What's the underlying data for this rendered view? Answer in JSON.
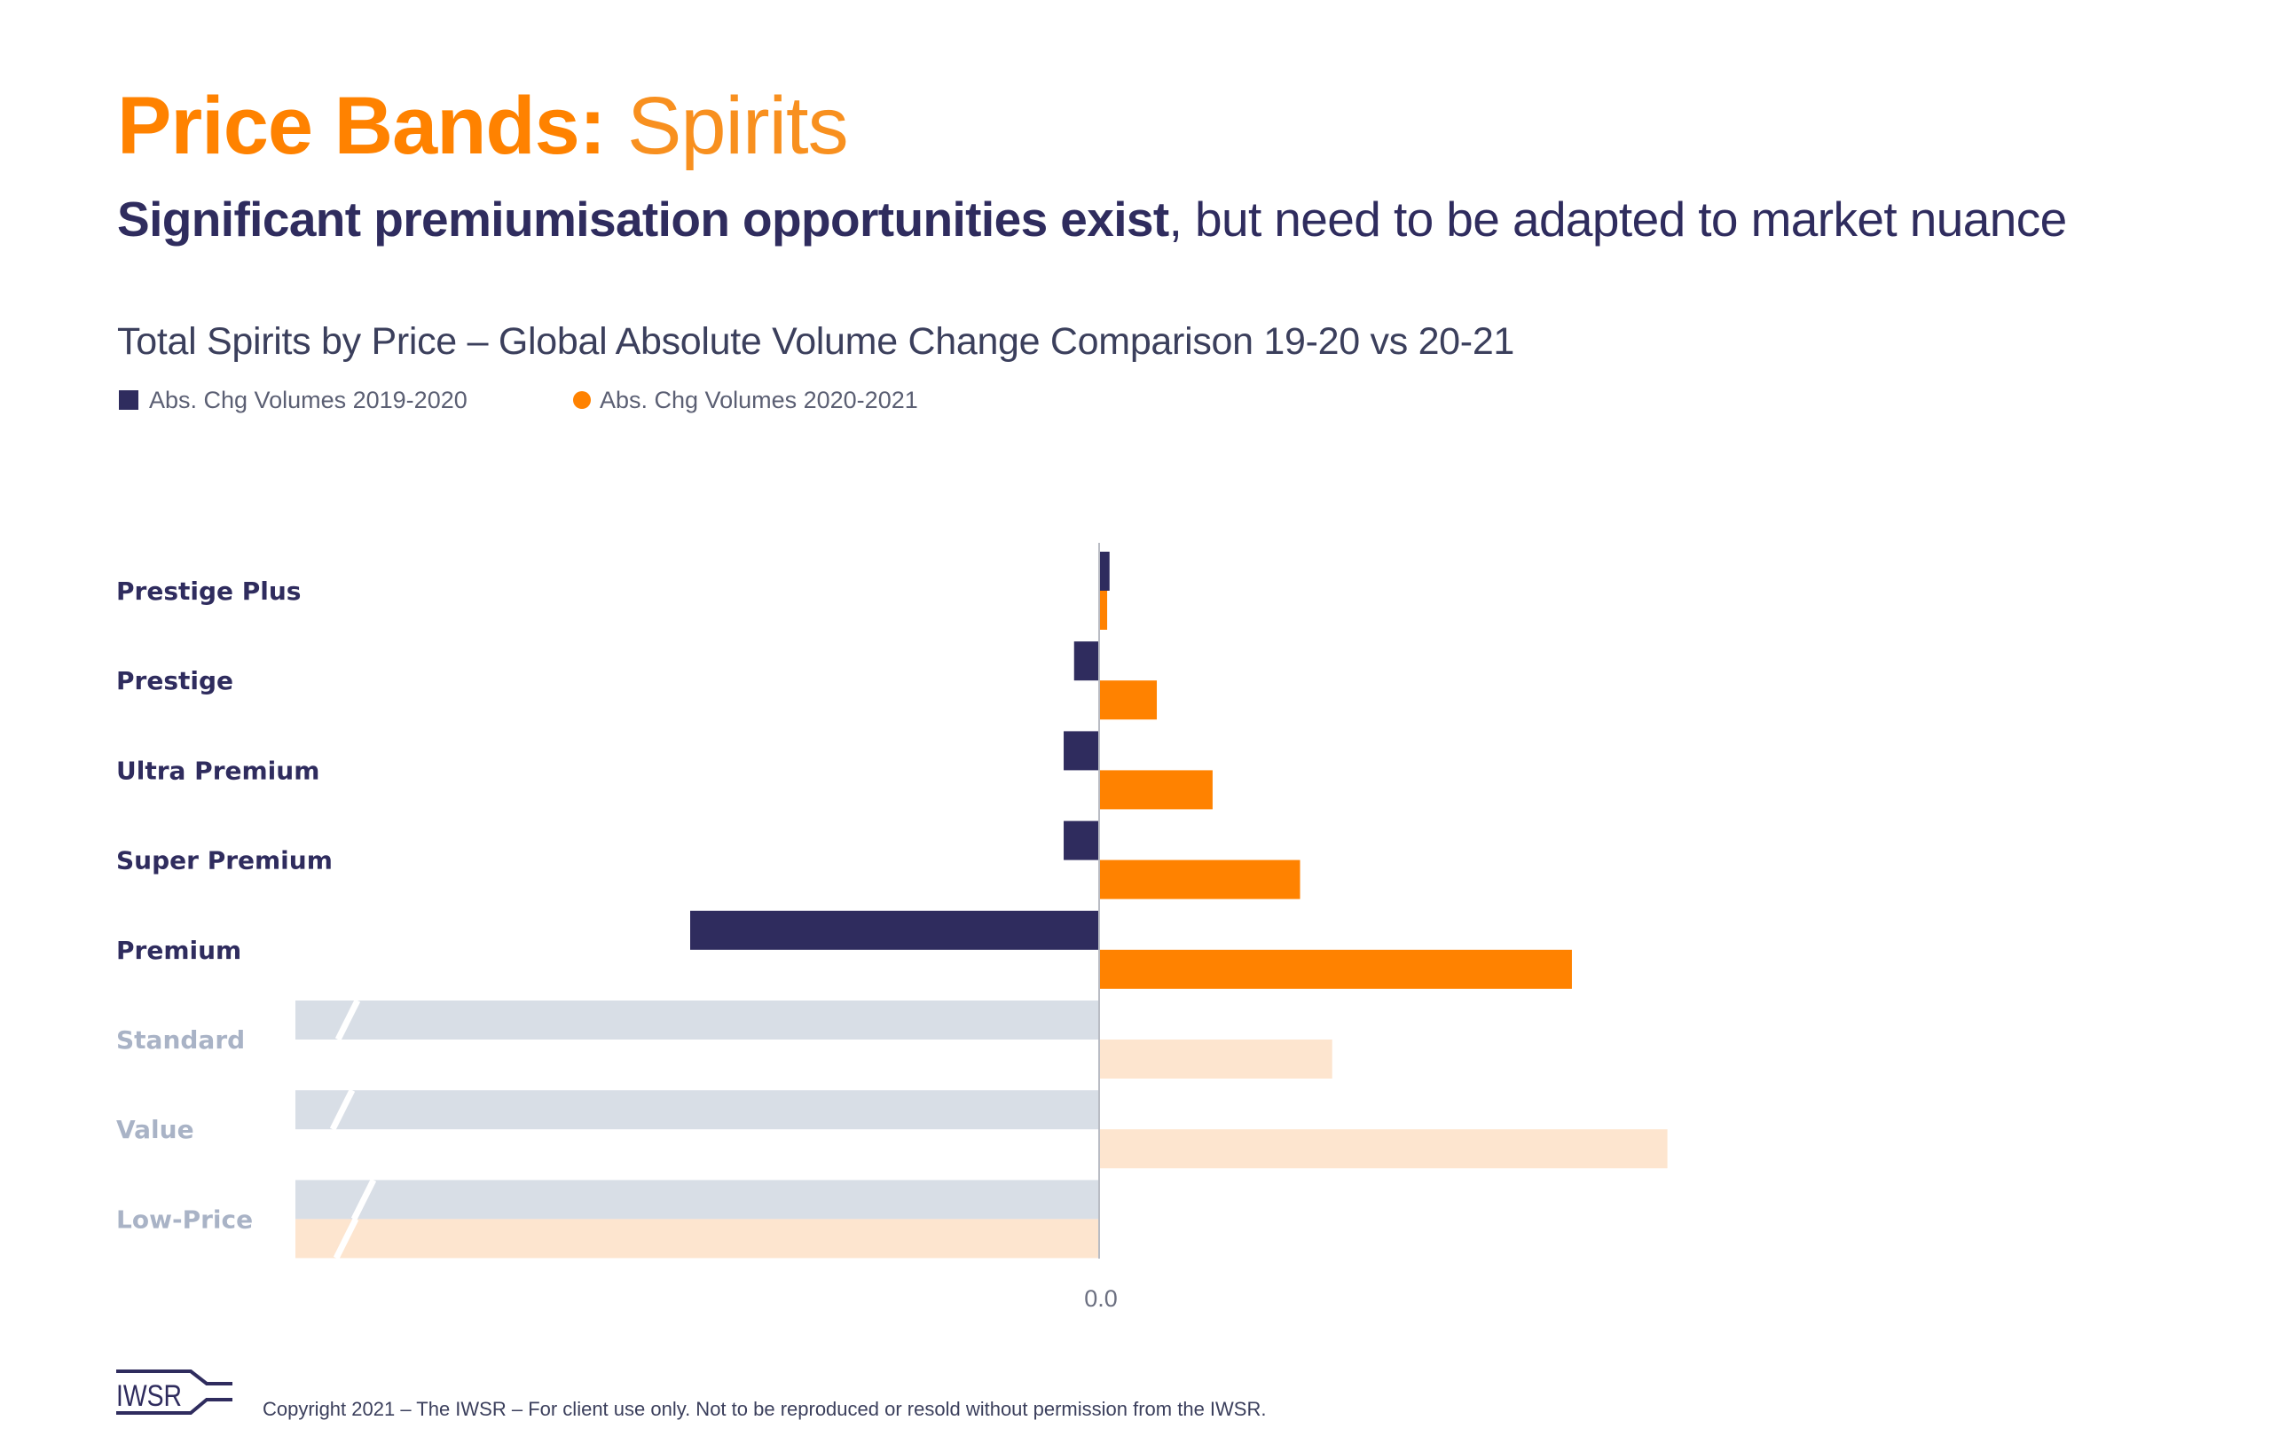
{
  "header": {
    "title_bold": "Price Bands:",
    "title_light": " Spirits",
    "headline_bold": "Significant premiumisation opportunities exist",
    "headline_regular": ", but need to be adapted to market nuance"
  },
  "colors": {
    "accent_orange": "#ff8200",
    "navy": "#2f2c5e",
    "muted_gray_bar": "#d8dee6",
    "muted_orange_bar": "#fde5cf",
    "muted_label": "#a9b3c6",
    "axis_line": "#b9bcc4"
  },
  "chart_data": {
    "type": "bar",
    "orientation": "horizontal",
    "title": "Total Spirits by Price – Global Absolute Volume Change Comparison 19-20 vs 20-21",
    "xlabel": "",
    "ylabel": "",
    "value_units": "relative index (no scale printed; Premium 2020-2021 = 100)",
    "x_tick_labels": [
      "0.0"
    ],
    "xlim": [
      -170,
      130
    ],
    "grid": false,
    "legend_position": "top-left",
    "categories": [
      "Prestige Plus",
      "Prestige",
      "Ultra Premium",
      "Super Premium",
      "Premium",
      "Standard",
      "Value",
      "Low-Price"
    ],
    "category_emphasis": [
      "strong",
      "strong",
      "strong",
      "strong",
      "strong",
      "muted",
      "muted",
      "muted"
    ],
    "series": [
      {
        "name": "Abs. Chg Volumes 2019-2020",
        "color": "#2f2c5e",
        "muted_color": "#d8dee6",
        "marker": "square",
        "values": [
          2.2,
          -5.3,
          -7.5,
          -7.5,
          -86.5,
          -170,
          -170,
          -170
        ],
        "truncated_axis_break": [
          false,
          false,
          false,
          false,
          false,
          true,
          true,
          true
        ]
      },
      {
        "name": "Abs. Chg Volumes 2020-2021",
        "color": "#ff8200",
        "muted_color": "#fde5cf",
        "marker": "circle",
        "values": [
          1.7,
          12.2,
          24.0,
          42.5,
          100,
          49.3,
          120.2,
          -170
        ],
        "truncated_axis_break": [
          false,
          false,
          false,
          false,
          false,
          false,
          false,
          true
        ]
      }
    ]
  },
  "footer": {
    "logo_text": "IWSR",
    "copyright": "Copyright 2021 – The IWSR – For client use only. Not to be reproduced or resold without permission from the IWSR."
  }
}
